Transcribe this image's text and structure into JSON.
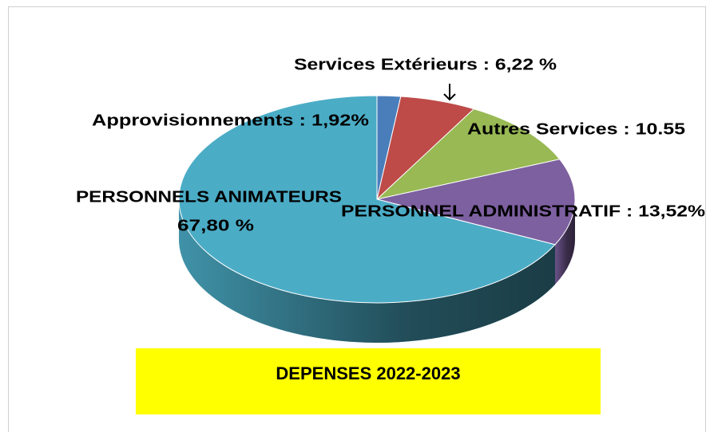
{
  "chart_data": {
    "type": "pie",
    "title": "DEPENSES 2022-2023",
    "categories": [
      "Approvisionnements",
      "Services Extérieurs",
      "Autres Services",
      "PERSONNEL ADMINISTRATIF",
      "PERSONNELS ANIMATEURS"
    ],
    "values": [
      1.92,
      6.22,
      10.55,
      13.52,
      67.8
    ],
    "value_labels": [
      [
        "Approvisionnements : 1,92%"
      ],
      [
        "Services Extérieurs : 6,22 %"
      ],
      [
        "Autres Services : 10.55"
      ],
      [
        "PERSONNEL ADMINISTRATIF : 13,52%"
      ],
      [
        "PERSONNELS ANIMATEURS",
        "67,80 %"
      ]
    ],
    "colors": [
      "#4a7ebb",
      "#be4b48",
      "#98b954",
      "#7d60a0",
      "#4bacc6"
    ],
    "title_background": "#ffff00"
  }
}
